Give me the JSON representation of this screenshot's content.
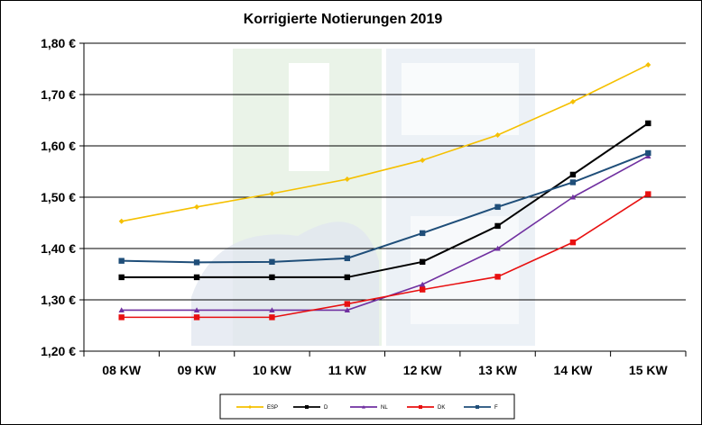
{
  "chart_data": {
    "type": "line",
    "title": "Korrigierte Notierungen 2019",
    "categories": [
      "08 KW",
      "09 KW",
      "10 KW",
      "11 KW",
      "12 KW",
      "13 KW",
      "14 KW",
      "15 KW"
    ],
    "ylim": [
      1.2,
      1.8
    ],
    "yticks": [
      "1,20 €",
      "1,30 €",
      "1,40 €",
      "1,50 €",
      "1,60 €",
      "1,70 €",
      "1,80 €"
    ],
    "grid": true,
    "legend_position": "bottom",
    "series": [
      {
        "name": "ESP",
        "color": "#f5c000",
        "marker": "diamond",
        "values": [
          1.453,
          1.481,
          1.507,
          1.535,
          1.572,
          1.621,
          1.686,
          1.758
        ]
      },
      {
        "name": "D",
        "color": "#000000",
        "marker": "square",
        "values": [
          1.344,
          1.344,
          1.344,
          1.344,
          1.374,
          1.444,
          1.544,
          1.644
        ]
      },
      {
        "name": "NL",
        "color": "#7030a0",
        "marker": "triangle",
        "values": [
          1.28,
          1.28,
          1.28,
          1.28,
          1.33,
          1.4,
          1.5,
          1.58
        ]
      },
      {
        "name": "DK",
        "color": "#e81010",
        "marker": "square",
        "values": [
          1.266,
          1.266,
          1.266,
          1.292,
          1.32,
          1.345,
          1.412,
          1.506
        ]
      },
      {
        "name": "F",
        "color": "#1f4e79",
        "marker": "square",
        "values": [
          1.376,
          1.373,
          1.374,
          1.381,
          1.43,
          1.481,
          1.529,
          1.586
        ]
      }
    ]
  }
}
